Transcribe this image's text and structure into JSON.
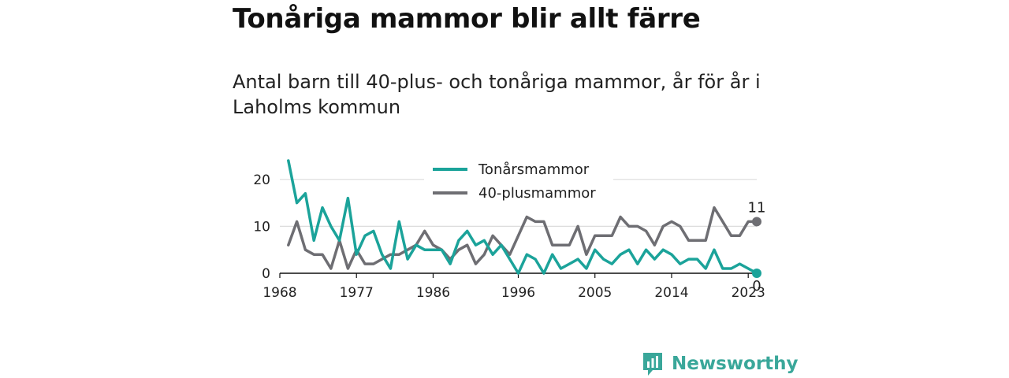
{
  "title": "Tonåriga mammor blir allt färre",
  "subtitle": "Antal barn till 40-plus- och tonåriga mammor, år för år i Laholms kommun",
  "brand": {
    "name": "Newsworthy"
  },
  "colors": {
    "teal": "#1ba39a",
    "gray": "#6e6e73",
    "brand": "#3aa79a"
  },
  "chart_data": {
    "type": "line",
    "title": "",
    "xlabel": "",
    "ylabel": "",
    "xlim": [
      1968,
      2024
    ],
    "ylim": [
      0,
      25
    ],
    "grid": true,
    "legend_position": "top-center",
    "x_ticks": [
      1968,
      1977,
      1986,
      1996,
      2005,
      2014,
      2023
    ],
    "y_ticks": [
      0,
      10,
      20
    ],
    "x": [
      1969,
      1970,
      1971,
      1972,
      1973,
      1974,
      1975,
      1976,
      1977,
      1978,
      1979,
      1980,
      1981,
      1982,
      1983,
      1984,
      1985,
      1986,
      1987,
      1988,
      1989,
      1990,
      1991,
      1992,
      1993,
      1994,
      1995,
      1996,
      1997,
      1998,
      1999,
      2000,
      2001,
      2002,
      2003,
      2004,
      2005,
      2006,
      2007,
      2008,
      2009,
      2010,
      2011,
      2012,
      2013,
      2014,
      2015,
      2016,
      2017,
      2018,
      2019,
      2020,
      2021,
      2022,
      2023,
      2024
    ],
    "series": [
      {
        "name": "Tonårsmammor",
        "color": "#1ba39a",
        "values": [
          24,
          15,
          17,
          7,
          14,
          10,
          7,
          16,
          4,
          8,
          9,
          4,
          1,
          11,
          3,
          6,
          5,
          5,
          5,
          2,
          7,
          9,
          6,
          7,
          4,
          6,
          3,
          0,
          4,
          3,
          0,
          4,
          1,
          2,
          3,
          1,
          5,
          3,
          2,
          4,
          5,
          2,
          5,
          3,
          5,
          4,
          2,
          3,
          3,
          1,
          5,
          1,
          1,
          2,
          1,
          0
        ],
        "end_label": "0"
      },
      {
        "name": "40-plusmammor",
        "color": "#6e6e73",
        "values": [
          6,
          11,
          5,
          4,
          4,
          1,
          7,
          1,
          5,
          2,
          2,
          3,
          4,
          4,
          5,
          6,
          9,
          6,
          5,
          3,
          5,
          6,
          2,
          4,
          8,
          6,
          4,
          8,
          12,
          11,
          11,
          6,
          6,
          6,
          10,
          4,
          8,
          8,
          8,
          12,
          10,
          10,
          9,
          6,
          10,
          11,
          10,
          7,
          7,
          7,
          14,
          11,
          8,
          8,
          11,
          11
        ],
        "end_label": "11"
      }
    ]
  }
}
